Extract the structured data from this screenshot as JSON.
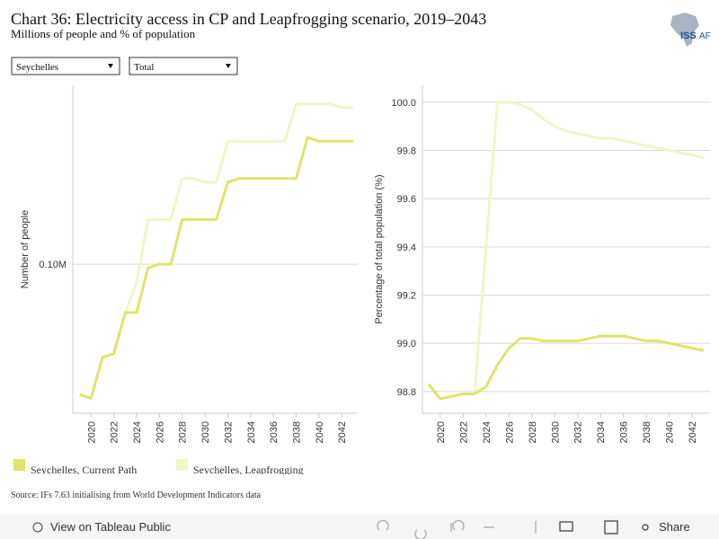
{
  "header": {
    "title": "Chart 36: Electricity access in CP and Leapfrogging scenario, 2019–2043",
    "subtitle": "Millions of people and % of population",
    "logo": [
      "ISS",
      "AF"
    ]
  },
  "filters": [
    "Seychelles",
    "Total"
  ],
  "chart_data": [
    {
      "type": "line",
      "y_label": "Number of people",
      "x": [
        2019,
        2020,
        2021,
        2022,
        2023,
        2024,
        2025,
        2026,
        2027,
        2028,
        2029,
        2030,
        2031,
        2032,
        2033,
        2034,
        2035,
        2036,
        2037,
        2038,
        2039,
        2040,
        2041,
        2042,
        2043
      ],
      "xlim": [
        2018.4,
        2043.4
      ],
      "xticks": [
        2020,
        2022,
        2024,
        2026,
        2028,
        2030,
        2032,
        2034,
        2036,
        2038,
        2040,
        2042
      ],
      "ylim": [
        0.096,
        0.1048
      ],
      "yticks": [
        {
          "value": 0.1,
          "label": "0.10M"
        }
      ],
      "grid": true,
      "series": [
        {
          "name": "Seychelles, Current Path",
          "color": "#dfe46b",
          "values": [
            0.0965,
            0.0964,
            0.0975,
            0.0976,
            0.0987,
            0.0987,
            0.0999,
            0.1,
            0.1,
            0.1012,
            0.1012,
            0.1012,
            0.1012,
            0.1022,
            0.1023,
            0.1023,
            0.1023,
            0.1023,
            0.1023,
            0.1023,
            0.1034,
            0.1033,
            0.1033,
            0.1033,
            0.1033
          ]
        },
        {
          "name": "Seychelles, Leapfrogging",
          "color": "#f2f5c8",
          "values": [
            0.0965,
            0.0964,
            0.0975,
            0.0976,
            0.0987,
            0.0995,
            0.1012,
            0.1012,
            0.1012,
            0.1023,
            0.1023,
            0.1022,
            0.1022,
            0.1033,
            0.1033,
            0.1033,
            0.1033,
            0.1033,
            0.1033,
            0.1043,
            0.1043,
            0.1043,
            0.1043,
            0.1042,
            0.1042
          ]
        }
      ]
    },
    {
      "type": "line",
      "y_label": "Percentage of total population (%)",
      "x": [
        2019,
        2020,
        2021,
        2022,
        2023,
        2024,
        2025,
        2026,
        2027,
        2028,
        2029,
        2030,
        2031,
        2032,
        2033,
        2034,
        2035,
        2036,
        2037,
        2038,
        2039,
        2040,
        2041,
        2042,
        2043
      ],
      "xlim": [
        2018.45,
        2043.55
      ],
      "xticks": [
        2020,
        2022,
        2024,
        2026,
        2028,
        2030,
        2032,
        2034,
        2036,
        2038,
        2040,
        2042
      ],
      "ylim": [
        98.71,
        100.07
      ],
      "yticks": [
        {
          "value": 98.8,
          "label": "98.8"
        },
        {
          "value": 99,
          "label": "99.0"
        },
        {
          "value": 99.2,
          "label": "99.2"
        },
        {
          "value": 99.4,
          "label": "99.4"
        },
        {
          "value": 99.6,
          "label": "99.6"
        },
        {
          "value": 99.8,
          "label": "99.8"
        },
        {
          "value": 100,
          "label": "100.0"
        }
      ],
      "grid": true,
      "series": [
        {
          "color": "#dfe46b",
          "values": [
            98.83,
            98.77,
            98.78,
            98.79,
            98.79,
            98.82,
            98.91,
            98.98,
            99.02,
            99.02,
            99.01,
            99.01,
            99.01,
            99.01,
            99.02,
            99.03,
            99.03,
            99.03,
            99.02,
            99.01,
            99.01,
            99.0,
            98.99,
            98.98,
            98.97
          ]
        },
        {
          "color": "#f2f5c8",
          "values": [
            98.83,
            98.77,
            98.78,
            98.79,
            98.79,
            99.4,
            100.0,
            100.0,
            99.99,
            99.97,
            99.93,
            99.9,
            99.88,
            99.87,
            99.86,
            99.85,
            99.85,
            99.84,
            99.83,
            99.82,
            99.81,
            99.8,
            99.79,
            99.78,
            99.77
          ]
        }
      ]
    }
  ],
  "source": "Source: IFs 7.63 initialising from World Development Indicators data",
  "toolbar": {
    "view": "View on Tableau Public",
    "share": "Share"
  }
}
